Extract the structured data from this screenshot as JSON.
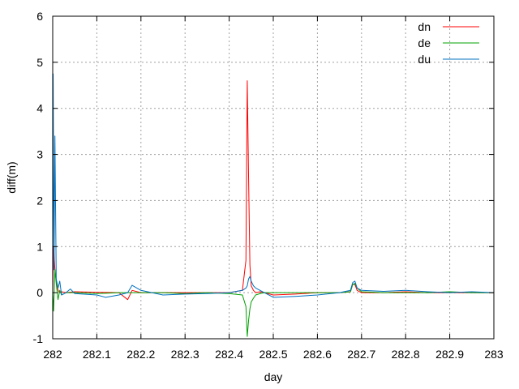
{
  "chart_data": {
    "type": "line",
    "title": "",
    "xlabel": "day",
    "ylabel": "diff(m)",
    "xlim": [
      282,
      283
    ],
    "ylim": [
      -1,
      6
    ],
    "xticks": [
      282,
      282.1,
      282.2,
      282.3,
      282.4,
      282.5,
      282.6,
      282.7,
      282.8,
      282.9,
      283
    ],
    "xtick_labels": [
      "282",
      "282.1",
      "282.2",
      "282.3",
      "282.4",
      "282.5",
      "282.6",
      "282.7",
      "282.8",
      "282.9",
      "283"
    ],
    "yticks": [
      -1,
      0,
      1,
      2,
      3,
      4,
      5,
      6
    ],
    "ytick_labels": [
      "-1",
      "0",
      "1",
      "2",
      "3",
      "4",
      "5",
      "6"
    ],
    "grid": true,
    "legend_position": "top-right",
    "series": [
      {
        "name": "dn",
        "color": "#ff0000",
        "x": [
          282.0,
          282.002,
          282.005,
          282.01,
          282.015,
          282.02,
          282.03,
          282.05,
          282.1,
          282.15,
          282.17,
          282.18,
          282.2,
          282.25,
          282.3,
          282.35,
          282.4,
          282.43,
          282.438,
          282.441,
          282.444,
          282.447,
          282.45,
          282.455,
          282.46,
          282.47,
          282.48,
          282.5,
          282.55,
          282.6,
          282.65,
          282.675,
          282.68,
          282.685,
          282.69,
          282.7,
          282.75,
          282.8,
          282.85,
          282.9,
          282.95,
          283.0
        ],
        "y": [
          0.0,
          1.0,
          0.5,
          0.1,
          0.0,
          0.02,
          0.0,
          0.02,
          0.01,
          0.0,
          -0.15,
          0.05,
          0.0,
          0.0,
          0.0,
          0.0,
          0.0,
          0.05,
          0.7,
          4.6,
          2.5,
          0.6,
          0.15,
          0.05,
          0.0,
          0.02,
          0.0,
          -0.05,
          -0.03,
          0.0,
          0.0,
          0.02,
          0.18,
          0.18,
          0.05,
          0.0,
          0.0,
          0.02,
          0.0,
          0.0,
          0.0,
          0.0
        ]
      },
      {
        "name": "de",
        "color": "#00a000",
        "x": [
          282.0,
          282.002,
          282.005,
          282.008,
          282.012,
          282.016,
          282.02,
          282.03,
          282.05,
          282.1,
          282.15,
          282.2,
          282.25,
          282.3,
          282.35,
          282.4,
          282.43,
          282.438,
          282.441,
          282.444,
          282.447,
          282.45,
          282.455,
          282.46,
          282.47,
          282.48,
          282.5,
          282.55,
          282.6,
          282.65,
          282.675,
          282.68,
          282.685,
          282.69,
          282.7,
          282.75,
          282.8,
          282.85,
          282.9,
          282.95,
          283.0
        ],
        "y": [
          0.0,
          -0.4,
          0.5,
          0.2,
          -0.15,
          0.05,
          -0.05,
          0.0,
          0.0,
          -0.02,
          0.0,
          0.0,
          0.0,
          -0.02,
          0.0,
          -0.02,
          -0.05,
          -0.3,
          -0.95,
          -0.6,
          -0.35,
          -0.2,
          -0.12,
          -0.05,
          -0.02,
          0.0,
          0.0,
          0.0,
          0.0,
          0.0,
          0.02,
          0.18,
          0.2,
          0.1,
          0.02,
          0.0,
          0.0,
          0.0,
          0.02,
          0.0,
          0.0
        ]
      },
      {
        "name": "du",
        "color": "#0070c0",
        "x": [
          282.0,
          282.001,
          282.003,
          282.005,
          282.008,
          282.012,
          282.016,
          282.02,
          282.03,
          282.04,
          282.05,
          282.1,
          282.12,
          282.15,
          282.17,
          282.18,
          282.2,
          282.25,
          282.3,
          282.35,
          282.4,
          282.43,
          282.438,
          282.441,
          282.444,
          282.447,
          282.45,
          282.455,
          282.46,
          282.47,
          282.48,
          282.5,
          282.55,
          282.6,
          282.65,
          282.675,
          282.68,
          282.685,
          282.69,
          282.7,
          282.75,
          282.8,
          282.85,
          282.9,
          282.95,
          283.0
        ],
        "y": [
          0.0,
          4.75,
          0.5,
          3.4,
          0.3,
          0.1,
          0.25,
          -0.05,
          0.0,
          0.08,
          -0.02,
          -0.05,
          -0.1,
          -0.05,
          0.0,
          0.16,
          0.05,
          -0.05,
          -0.03,
          -0.02,
          0.0,
          0.05,
          0.1,
          0.15,
          0.3,
          0.35,
          0.25,
          0.15,
          0.1,
          0.05,
          0.0,
          -0.1,
          -0.08,
          -0.05,
          0.0,
          0.05,
          0.22,
          0.25,
          0.1,
          0.05,
          0.03,
          0.05,
          0.02,
          0.0,
          0.02,
          0.0
        ]
      }
    ]
  }
}
